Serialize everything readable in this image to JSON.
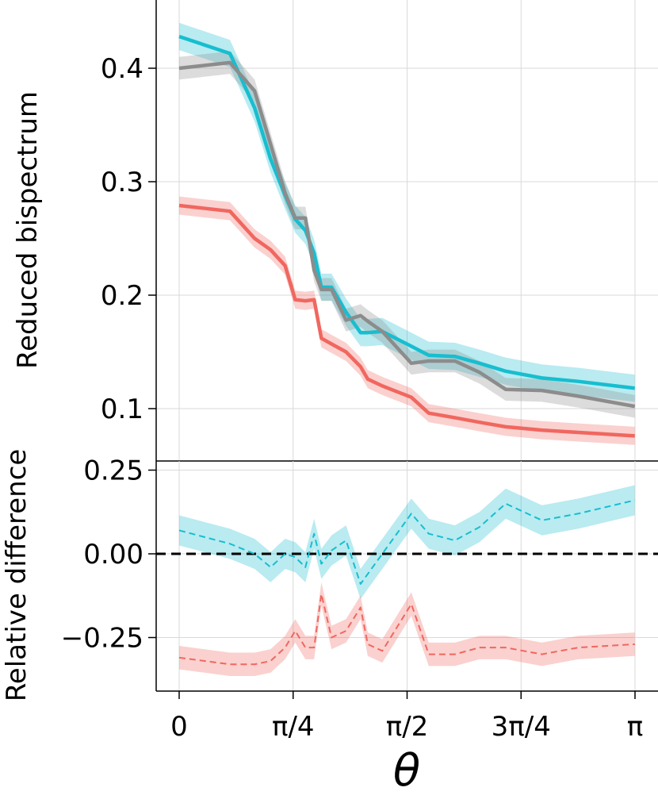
{
  "chart_data": [
    {
      "type": "line",
      "panel": "top",
      "ylabel": "Reduced bispectrum",
      "ylim": [
        0.075,
        0.46
      ],
      "yticks": [
        {
          "value": 0.1,
          "label": "0.1"
        },
        {
          "value": 0.2,
          "label": "0.2"
        },
        {
          "value": 0.3,
          "label": "0.3"
        },
        {
          "value": 0.4,
          "label": "0.4"
        }
      ],
      "grid": true,
      "x": [
        0.0,
        0.35,
        0.52,
        0.63,
        0.73,
        0.8,
        0.87,
        0.93,
        0.98,
        1.05,
        1.15,
        1.25,
        1.3,
        1.4,
        1.6,
        1.72,
        1.9,
        2.07,
        2.25,
        2.5,
        2.75,
        3.14
      ],
      "series": [
        {
          "color": "#17becf",
          "style": "solid",
          "values": [
            0.428,
            0.413,
            0.365,
            0.32,
            0.288,
            0.267,
            0.257,
            0.237,
            0.207,
            0.207,
            0.185,
            0.167,
            0.167,
            0.168,
            0.155,
            0.147,
            0.146,
            0.14,
            0.133,
            0.127,
            0.124,
            0.118
          ],
          "band": 0.012
        },
        {
          "color": "#8c8c8c",
          "style": "solid",
          "values": [
            0.4,
            0.405,
            0.38,
            0.333,
            0.29,
            0.268,
            0.268,
            0.222,
            0.205,
            0.205,
            0.178,
            0.182,
            0.177,
            0.168,
            0.14,
            0.142,
            0.142,
            0.132,
            0.117,
            0.116,
            0.111,
            0.102
          ],
          "band": 0.01
        },
        {
          "color": "#f0675f",
          "style": "solid",
          "values": [
            0.279,
            0.274,
            0.25,
            0.24,
            0.226,
            0.196,
            0.195,
            0.196,
            0.162,
            0.157,
            0.15,
            0.137,
            0.126,
            0.12,
            0.11,
            0.096,
            0.092,
            0.088,
            0.084,
            0.081,
            0.079,
            0.076
          ],
          "band": 0.008
        }
      ]
    },
    {
      "type": "line",
      "panel": "bottom",
      "ylabel": "Relative difference",
      "ylim": [
        -0.4,
        0.3
      ],
      "yticks": [
        {
          "value": -0.25,
          "label": "−0.25"
        },
        {
          "value": 0.0,
          "label": "0.00"
        },
        {
          "value": 0.25,
          "label": "0.25"
        }
      ],
      "grid": true,
      "reference_line": {
        "value": 0.0,
        "color": "#000000",
        "style": "dashed"
      },
      "x": [
        0.0,
        0.35,
        0.52,
        0.63,
        0.73,
        0.8,
        0.87,
        0.93,
        0.98,
        1.05,
        1.15,
        1.25,
        1.3,
        1.4,
        1.6,
        1.72,
        1.9,
        2.07,
        2.25,
        2.5,
        2.75,
        3.14
      ],
      "series": [
        {
          "color": "#17becf",
          "style": "dashed",
          "values": [
            0.07,
            0.03,
            0.0,
            -0.04,
            0.0,
            -0.01,
            -0.04,
            0.06,
            -0.03,
            0.01,
            0.04,
            -0.09,
            -0.06,
            0.0,
            0.12,
            0.06,
            0.04,
            0.08,
            0.15,
            0.1,
            0.12,
            0.16
          ],
          "band": 0.045
        },
        {
          "color": "#f0675f",
          "style": "dashed",
          "values": [
            -0.31,
            -0.33,
            -0.33,
            -0.32,
            -0.28,
            -0.23,
            -0.28,
            -0.28,
            -0.12,
            -0.25,
            -0.23,
            -0.16,
            -0.27,
            -0.29,
            -0.15,
            -0.3,
            -0.3,
            -0.28,
            -0.28,
            -0.3,
            -0.28,
            -0.27
          ],
          "band": 0.035
        }
      ]
    }
  ],
  "xaxis": {
    "title": "θ",
    "xlim": [
      -0.08,
      3.2
    ],
    "ticks": [
      {
        "value": 0,
        "label": "0"
      },
      {
        "value": 0.7854,
        "label": "π/4"
      },
      {
        "value": 1.5708,
        "label": "π/2"
      },
      {
        "value": 2.3562,
        "label": "3π/4"
      },
      {
        "value": 3.1416,
        "label": "π"
      }
    ]
  }
}
